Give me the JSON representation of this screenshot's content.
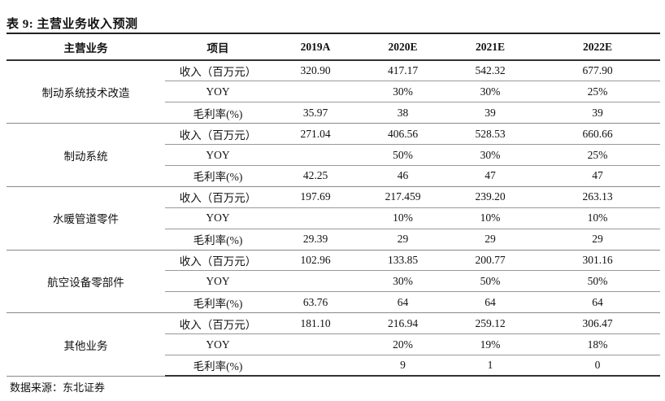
{
  "title": "表 9: 主营业务收入预测",
  "headers": [
    "主营业务",
    "项目",
    "2019A",
    "2020E",
    "2021E",
    "2022E"
  ],
  "groups": [
    {
      "name": "制动系统技术改造",
      "rows": [
        {
          "item": "收入（百万元）",
          "values": [
            "320.90",
            "417.17",
            "542.32",
            "677.90"
          ]
        },
        {
          "item": "YOY",
          "values": [
            "",
            "30%",
            "30%",
            "25%"
          ]
        },
        {
          "item": "毛利率(%)",
          "values": [
            "35.97",
            "38",
            "39",
            "39"
          ]
        }
      ]
    },
    {
      "name": "制动系统",
      "rows": [
        {
          "item": "收入（百万元）",
          "values": [
            "271.04",
            "406.56",
            "528.53",
            "660.66"
          ]
        },
        {
          "item": "YOY",
          "values": [
            "",
            "50%",
            "30%",
            "25%"
          ]
        },
        {
          "item": "毛利率(%)",
          "values": [
            "42.25",
            "46",
            "47",
            "47"
          ]
        }
      ]
    },
    {
      "name": "水暖管道零件",
      "rows": [
        {
          "item": "收入（百万元）",
          "values": [
            "197.69",
            "217.459",
            "239.20",
            "263.13"
          ]
        },
        {
          "item": "YOY",
          "values": [
            "",
            "10%",
            "10%",
            "10%"
          ]
        },
        {
          "item": "毛利率(%)",
          "values": [
            "29.39",
            "29",
            "29",
            "29"
          ]
        }
      ]
    },
    {
      "name": "航空设备零部件",
      "rows": [
        {
          "item": "收入（百万元）",
          "values": [
            "102.96",
            "133.85",
            "200.77",
            "301.16"
          ]
        },
        {
          "item": "YOY",
          "values": [
            "",
            "30%",
            "50%",
            "50%"
          ]
        },
        {
          "item": "毛利率(%)",
          "values": [
            "63.76",
            "64",
            "64",
            "64"
          ]
        }
      ]
    },
    {
      "name": "其他业务",
      "rows": [
        {
          "item": "收入（百万元）",
          "values": [
            "181.10",
            "216.94",
            "259.12",
            "306.47"
          ]
        },
        {
          "item": "YOY",
          "values": [
            "",
            "20%",
            "19%",
            "18%"
          ]
        },
        {
          "item": "毛利率(%)",
          "values": [
            "",
            "9",
            "1",
            "0"
          ]
        }
      ]
    }
  ],
  "source": "数据来源：东北证券"
}
